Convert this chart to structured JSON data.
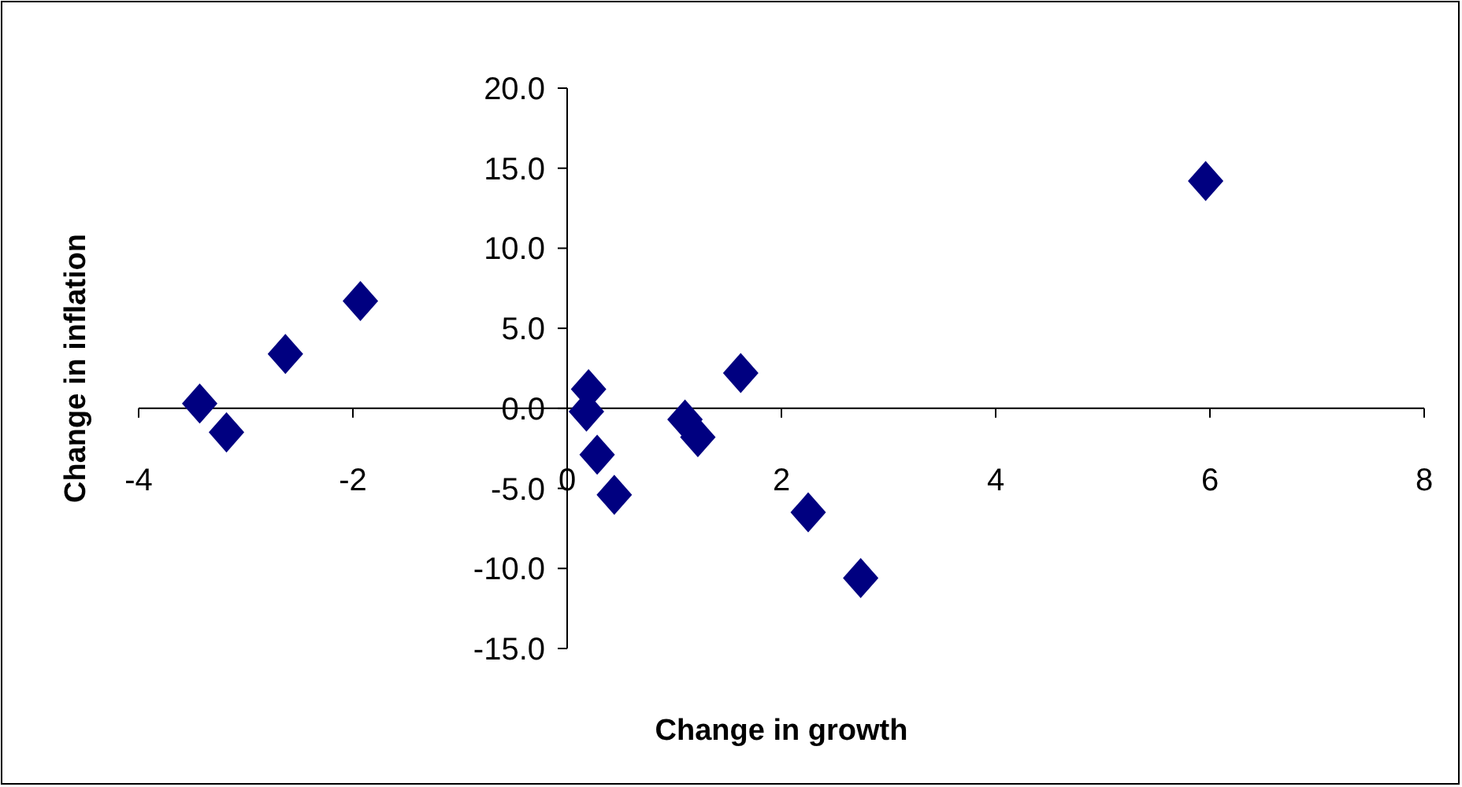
{
  "chart_data": {
    "type": "scatter",
    "xlabel": "Change in growth",
    "ylabel": "Change in inflation",
    "x": [
      0.2,
      0.18,
      0.28,
      0.44,
      1.1,
      1.22,
      1.62,
      2.25,
      2.74,
      5.96,
      -1.93,
      -2.63,
      -3.18,
      -3.43
    ],
    "series": [
      {
        "color": "#000080",
        "values": [
          1.2,
          -0.2,
          -2.9,
          -5.4,
          -0.7,
          -1.8,
          2.2,
          -6.5,
          -10.6,
          14.2,
          6.7,
          3.4,
          -1.5,
          0.3
        ]
      }
    ],
    "xlim": [
      -4,
      8
    ],
    "xticks": [
      -4,
      -2,
      0,
      2,
      4,
      6,
      8
    ],
    "ylim": [
      -15,
      20
    ],
    "yticks": [
      {
        "value": -15,
        "label": "-15.0"
      },
      {
        "value": -10,
        "label": "-10.0"
      },
      {
        "value": -5,
        "label": "-5.0"
      },
      {
        "value": 0,
        "label": "0.0"
      },
      {
        "value": 5,
        "label": "5.0"
      },
      {
        "value": 10,
        "label": "10.0"
      },
      {
        "value": 15,
        "label": "15.0"
      },
      {
        "value": 20,
        "label": "20.0"
      }
    ],
    "marker": "diamond",
    "grid": false
  }
}
